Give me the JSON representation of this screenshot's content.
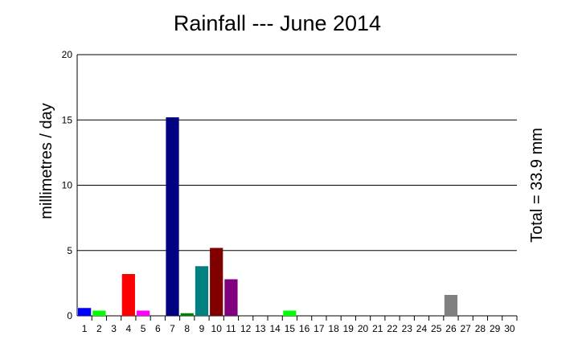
{
  "chart_data": {
    "type": "bar",
    "title": "Rainfall --- June 2014",
    "xlabel": "",
    "ylabel": "millimetres / day",
    "right_label": "Total = 33.9 mm",
    "ylim": [
      0,
      20
    ],
    "yticks": [
      0,
      5,
      10,
      15,
      20
    ],
    "grid": true,
    "categories": [
      "1",
      "2",
      "3",
      "4",
      "5",
      "6",
      "7",
      "8",
      "9",
      "10",
      "11",
      "12",
      "13",
      "14",
      "15",
      "16",
      "17",
      "18",
      "19",
      "20",
      "21",
      "22",
      "23",
      "24",
      "25",
      "26",
      "27",
      "28",
      "29",
      "30"
    ],
    "values": [
      0.6,
      0.4,
      0,
      3.2,
      0.4,
      0,
      15.2,
      0.2,
      3.8,
      5.2,
      2.8,
      0,
      0,
      0,
      0.4,
      0,
      0,
      0,
      0,
      0,
      0,
      0,
      0,
      0,
      0,
      1.6,
      0,
      0,
      0,
      0
    ],
    "colors": [
      "#0000ff",
      "#00ff00",
      "#ff0000",
      "#ff0000",
      "#ff00ff",
      "#00ffff",
      "#000080",
      "#008000",
      "#008080",
      "#800000",
      "#800080",
      "#000000",
      "#000000",
      "#000000",
      "#00ff00",
      "#000000",
      "#000000",
      "#000000",
      "#000000",
      "#000000",
      "#000000",
      "#000000",
      "#000000",
      "#000000",
      "#000000",
      "#808080",
      "#000000",
      "#000000",
      "#000000",
      "#000000"
    ]
  }
}
